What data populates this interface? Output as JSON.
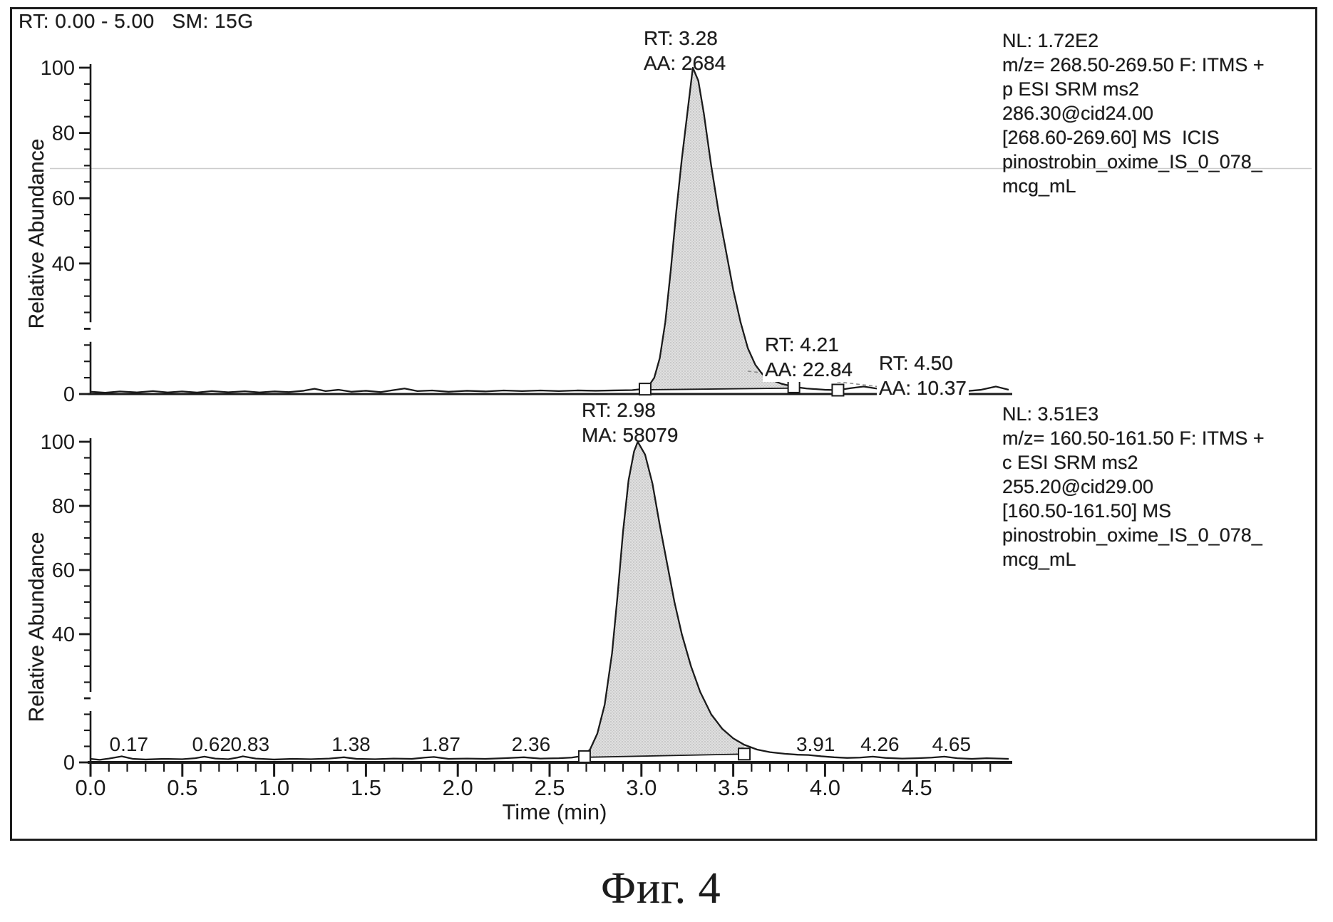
{
  "figure": {
    "header": "RT: 0.00 - 5.00   SM: 15G",
    "caption": "Фиг. 4"
  },
  "chart_data": [
    {
      "type": "area",
      "panel": "top",
      "ylabel": "Relative Abundance",
      "xlim": [
        0,
        5
      ],
      "ylim": [
        0,
        100
      ],
      "ytick_labels": [
        "100",
        "80",
        "60",
        "40",
        "0"
      ],
      "nl": "1.72E2",
      "info": "NL: 1.72E2\nm/z= 268.50-269.50 F: ITMS +\np ESI SRM ms2\n286.30@cid24.00\n[268.60-269.60] MS  ICIS\npinostrobin_oxime_IS_0_078_\nmcg_mL",
      "peaks": [
        {
          "rt": 3.28,
          "aa": 2684,
          "label": "RT: 3.28\nAA: 2684"
        },
        {
          "rt": 4.21,
          "aa": 22.84,
          "label": "RT: 4.21\nAA: 22.84"
        },
        {
          "rt": 4.5,
          "aa": 10.37,
          "label": "RT: 4.50\nAA: 10.37"
        }
      ],
      "fill": {
        "from": 3.02,
        "to": 3.83,
        "base_from": 1.3,
        "base_to": 1.8
      },
      "markers": [
        [
          3.02,
          1.5
        ],
        [
          3.83,
          2.2
        ],
        [
          4.07,
          1.2
        ],
        [
          4.41,
          1.4
        ],
        [
          4.56,
          1.5
        ]
      ],
      "dashed_baseline": [
        [
          3.58,
          7.0
        ],
        [
          4.42,
          1.4
        ]
      ],
      "trace": [
        [
          0.0,
          0.7
        ],
        [
          0.08,
          0.4
        ],
        [
          0.16,
          0.8
        ],
        [
          0.25,
          0.5
        ],
        [
          0.34,
          0.9
        ],
        [
          0.42,
          0.5
        ],
        [
          0.5,
          0.8
        ],
        [
          0.58,
          0.45
        ],
        [
          0.66,
          0.9
        ],
        [
          0.75,
          0.55
        ],
        [
          0.84,
          0.85
        ],
        [
          0.92,
          0.5
        ],
        [
          1.0,
          0.8
        ],
        [
          1.08,
          0.6
        ],
        [
          1.16,
          1.0
        ],
        [
          1.22,
          1.6
        ],
        [
          1.28,
          0.9
        ],
        [
          1.35,
          1.3
        ],
        [
          1.42,
          0.7
        ],
        [
          1.5,
          1.0
        ],
        [
          1.58,
          0.6
        ],
        [
          1.65,
          1.2
        ],
        [
          1.71,
          1.7
        ],
        [
          1.78,
          0.9
        ],
        [
          1.86,
          1.1
        ],
        [
          1.95,
          0.7
        ],
        [
          2.05,
          1.0
        ],
        [
          2.15,
          0.8
        ],
        [
          2.25,
          1.1
        ],
        [
          2.35,
          0.9
        ],
        [
          2.45,
          1.1
        ],
        [
          2.55,
          0.9
        ],
        [
          2.65,
          1.1
        ],
        [
          2.75,
          1.0
        ],
        [
          2.85,
          1.1
        ],
        [
          2.95,
          1.2
        ],
        [
          3.0,
          1.5
        ],
        [
          3.04,
          2.5
        ],
        [
          3.07,
          5
        ],
        [
          3.1,
          11
        ],
        [
          3.13,
          22
        ],
        [
          3.16,
          38
        ],
        [
          3.19,
          56
        ],
        [
          3.22,
          72
        ],
        [
          3.25,
          86
        ],
        [
          3.28,
          100
        ],
        [
          3.31,
          96
        ],
        [
          3.34,
          86
        ],
        [
          3.38,
          70
        ],
        [
          3.42,
          56
        ],
        [
          3.46,
          44
        ],
        [
          3.5,
          32
        ],
        [
          3.54,
          22
        ],
        [
          3.58,
          14
        ],
        [
          3.62,
          9
        ],
        [
          3.66,
          6
        ],
        [
          3.7,
          4.5
        ],
        [
          3.76,
          3.2
        ],
        [
          3.83,
          2.2
        ],
        [
          3.9,
          1.7
        ],
        [
          4.0,
          1.3
        ],
        [
          4.07,
          1.2
        ],
        [
          4.14,
          1.8
        ],
        [
          4.21,
          2.3
        ],
        [
          4.28,
          1.7
        ],
        [
          4.35,
          1.3
        ],
        [
          4.41,
          1.4
        ],
        [
          4.46,
          1.9
        ],
        [
          4.5,
          2.1
        ],
        [
          4.56,
          1.5
        ],
        [
          4.65,
          1.0
        ],
        [
          4.75,
          0.8
        ],
        [
          4.85,
          1.3
        ],
        [
          4.93,
          2.3
        ],
        [
          5.0,
          1.3
        ]
      ]
    },
    {
      "type": "area",
      "panel": "bottom",
      "ylabel": "Relative Abundance",
      "xlabel": "Time (min)",
      "xlim": [
        0,
        5
      ],
      "ylim": [
        0,
        100
      ],
      "ytick_labels": [
        "100",
        "80",
        "60",
        "40",
        "0"
      ],
      "xtick_labels": [
        "0.0",
        "0.5",
        "1.0",
        "1.5",
        "2.0",
        "2.5",
        "3.0",
        "3.5",
        "4.0",
        "4.5"
      ],
      "nl": "3.51E3",
      "info": "NL: 3.51E3\nm/z= 160.50-161.50 F: ITMS +\nc ESI SRM ms2\n255.20@cid29.00\n[160.50-161.50] MS\npinostrobin_oxime_IS_0_078_\nmcg_mL",
      "peaks": [
        {
          "rt": 2.98,
          "ma": 58079,
          "label": "RT: 2.98\nMA: 58079"
        }
      ],
      "minor_peak_labels": [
        {
          "t": 0.17,
          "text": "0.17"
        },
        {
          "t": 0.62,
          "text": "0.62"
        },
        {
          "t": 0.83,
          "text": "0.83"
        },
        {
          "t": 1.38,
          "text": "1.38"
        },
        {
          "t": 1.87,
          "text": "1.87"
        },
        {
          "t": 2.36,
          "text": "2.36"
        },
        {
          "t": 3.91,
          "text": "3.91"
        },
        {
          "t": 4.26,
          "text": "4.26"
        },
        {
          "t": 4.65,
          "text": "4.65"
        }
      ],
      "fill": {
        "from": 2.7,
        "to": 3.56,
        "base_from": 1.6,
        "base_to": 2.6
      },
      "markers": [
        [
          2.69,
          1.8
        ],
        [
          3.56,
          2.6
        ]
      ],
      "trace": [
        [
          0.0,
          1.1
        ],
        [
          0.05,
          0.8
        ],
        [
          0.1,
          1.2
        ],
        [
          0.17,
          1.9
        ],
        [
          0.23,
          1.1
        ],
        [
          0.3,
          0.9
        ],
        [
          0.4,
          1.1
        ],
        [
          0.5,
          1.0
        ],
        [
          0.57,
          1.3
        ],
        [
          0.62,
          1.8
        ],
        [
          0.68,
          1.2
        ],
        [
          0.75,
          1.0
        ],
        [
          0.8,
          1.5
        ],
        [
          0.83,
          1.9
        ],
        [
          0.9,
          1.2
        ],
        [
          1.0,
          0.9
        ],
        [
          1.1,
          1.1
        ],
        [
          1.2,
          1.0
        ],
        [
          1.3,
          1.2
        ],
        [
          1.38,
          1.6
        ],
        [
          1.45,
          1.1
        ],
        [
          1.55,
          1.0
        ],
        [
          1.65,
          1.2
        ],
        [
          1.75,
          1.1
        ],
        [
          1.82,
          1.5
        ],
        [
          1.87,
          1.7
        ],
        [
          1.95,
          1.1
        ],
        [
          2.05,
          1.2
        ],
        [
          2.15,
          1.1
        ],
        [
          2.25,
          1.3
        ],
        [
          2.36,
          1.6
        ],
        [
          2.45,
          1.2
        ],
        [
          2.55,
          1.3
        ],
        [
          2.62,
          1.5
        ],
        [
          2.68,
          2.0
        ],
        [
          2.72,
          4
        ],
        [
          2.76,
          9
        ],
        [
          2.8,
          18
        ],
        [
          2.84,
          34
        ],
        [
          2.87,
          52
        ],
        [
          2.9,
          72
        ],
        [
          2.93,
          88
        ],
        [
          2.96,
          97
        ],
        [
          2.98,
          100
        ],
        [
          3.02,
          96
        ],
        [
          3.06,
          87
        ],
        [
          3.1,
          74
        ],
        [
          3.14,
          62
        ],
        [
          3.18,
          50
        ],
        [
          3.22,
          40
        ],
        [
          3.27,
          30
        ],
        [
          3.32,
          22
        ],
        [
          3.38,
          15
        ],
        [
          3.44,
          10.5
        ],
        [
          3.5,
          7.5
        ],
        [
          3.56,
          5.5
        ],
        [
          3.63,
          4.0
        ],
        [
          3.7,
          3.2
        ],
        [
          3.78,
          2.7
        ],
        [
          3.85,
          2.4
        ],
        [
          3.91,
          2.3
        ],
        [
          3.98,
          1.9
        ],
        [
          4.05,
          1.6
        ],
        [
          4.12,
          1.4
        ],
        [
          4.19,
          1.5
        ],
        [
          4.26,
          1.8
        ],
        [
          4.33,
          1.4
        ],
        [
          4.42,
          1.2
        ],
        [
          4.5,
          1.3
        ],
        [
          4.58,
          1.5
        ],
        [
          4.65,
          1.8
        ],
        [
          4.72,
          1.3
        ],
        [
          4.8,
          1.1
        ],
        [
          4.88,
          1.3
        ],
        [
          4.95,
          1.2
        ],
        [
          5.0,
          1.1
        ]
      ]
    }
  ]
}
